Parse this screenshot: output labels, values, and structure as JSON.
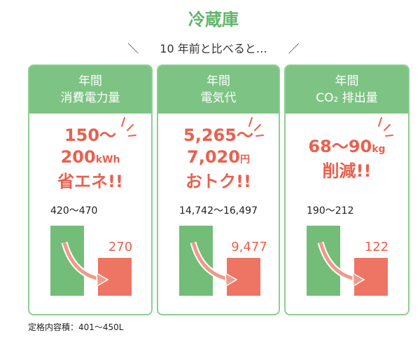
{
  "title": "冷蔵庫",
  "subtitle": {
    "left": "＼",
    "text": "10 年前と比べると…",
    "right": "／"
  },
  "cards": [
    {
      "header": [
        "年間",
        "消費電力量"
      ],
      "highlight": [
        [
          "150～"
        ],
        [
          "200",
          "kWh"
        ],
        [
          "省エネ!!"
        ]
      ],
      "before": "420～470",
      "after": "270"
    },
    {
      "header": [
        "年間",
        "電気代"
      ],
      "highlight": [
        [
          "5,265～"
        ],
        [
          "7,020",
          "円"
        ],
        [
          "おトク!!"
        ]
      ],
      "before": "14,742～16,497",
      "after": "9,477"
    },
    {
      "header": [
        "年間",
        "CO₂ 排出量"
      ],
      "highlight": [
        [
          "68～90",
          "kg"
        ],
        [
          "削減!!"
        ]
      ],
      "before": "190～212",
      "after": "122"
    }
  ],
  "footnote": "定格内容積：401～450L"
}
